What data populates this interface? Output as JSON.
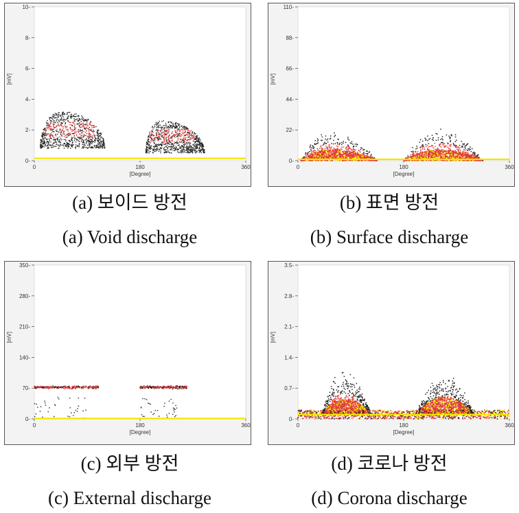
{
  "chart_data": [
    {
      "type": "scatter",
      "subtitle_ko": "(a) 보이드 방전",
      "subtitle_en": "(a) Void discharge",
      "xlabel": "[Degree]",
      "ylabel": "[mV]",
      "xlim": [
        0,
        360
      ],
      "ylim": [
        0,
        10
      ],
      "x_ticks": [
        0,
        180,
        360
      ],
      "y_ticks": [
        0,
        2,
        4,
        6,
        8,
        10
      ],
      "y_tick_labels": [
        "0",
        "2",
        "4",
        "6",
        "8",
        "10"
      ],
      "baseline": 0.15,
      "clusters": [
        {
          "x_start": 10,
          "x_end": 120,
          "x_peak": 45,
          "y_peak": 3.2,
          "y_min": 0.8,
          "core": 2.0
        },
        {
          "x_start": 190,
          "x_end": 290,
          "x_peak": 215,
          "y_peak": 2.6,
          "y_min": 0.5,
          "core": 1.6
        }
      ],
      "shape": "cloud",
      "colors": {
        "baseline": "#f2e600",
        "core": "#e03a3a",
        "outer": "#222222"
      }
    },
    {
      "type": "scatter",
      "subtitle_ko": "(b) 표면 방전",
      "subtitle_en": "(b) Surface discharge",
      "xlabel": "[Degree]",
      "ylabel": "[mV]",
      "xlim": [
        0,
        360
      ],
      "ylim": [
        0,
        110
      ],
      "x_ticks": [
        0,
        180,
        360
      ],
      "y_ticks": [
        0,
        22,
        44,
        66,
        88,
        110
      ],
      "y_tick_labels": [
        "0",
        "22",
        "44",
        "66",
        "88",
        "110"
      ],
      "baseline": 1,
      "clusters": [
        {
          "x_start": 5,
          "x_end": 135,
          "x_peak": 55,
          "y_peak": 22,
          "y_min": 0,
          "core": 8
        },
        {
          "x_start": 180,
          "x_end": 315,
          "x_peak": 240,
          "y_peak": 23,
          "y_min": 0,
          "core": 8
        }
      ],
      "shape": "dome",
      "colors": {
        "baseline": "#f2e600",
        "core": "#e03a3a",
        "outer": "#222222"
      }
    },
    {
      "type": "scatter",
      "subtitle_ko": "(c) 외부 방전",
      "subtitle_en": "(c) External discharge",
      "xlabel": "[Degree]",
      "ylabel": "[mV]",
      "xlim": [
        0,
        360
      ],
      "ylim": [
        0,
        350
      ],
      "x_ticks": [
        0,
        180,
        360
      ],
      "y_ticks": [
        0,
        70,
        140,
        210,
        280,
        350
      ],
      "y_tick_labels": [
        "0",
        "70",
        "140",
        "210",
        "280",
        "350"
      ],
      "baseline": 1,
      "clusters": [
        {
          "x_start": 0,
          "x_end": 110,
          "x_peak": 40,
          "y_peak": 75,
          "y_min": 65,
          "core": 72
        },
        {
          "x_start": 180,
          "x_end": 260,
          "x_peak": 220,
          "y_peak": 75,
          "y_min": 65,
          "core": 72
        }
      ],
      "shape": "band",
      "colors": {
        "baseline": "#f2e600",
        "core": "#e03a3a",
        "outer": "#222222"
      }
    },
    {
      "type": "scatter",
      "subtitle_ko": "(d) 코로나 방전",
      "subtitle_en": "(d) Corona discharge",
      "xlabel": "[Degree]",
      "ylabel": "[mV]",
      "xlim": [
        0,
        360
      ],
      "ylim": [
        0,
        3.5
      ],
      "x_ticks": [
        0,
        180,
        360
      ],
      "y_ticks": [
        0,
        0.7,
        1.4,
        2.1,
        2.8,
        3.5
      ],
      "y_tick_labels": [
        "0",
        "0.7",
        "1.4",
        "2.1",
        "2.8",
        "3.5"
      ],
      "baseline": 0.1,
      "base_band": [
        0.0,
        0.2
      ],
      "clusters": [
        {
          "x_start": 40,
          "x_end": 125,
          "x_peak": 78,
          "y_peak": 1.05,
          "y_min": 0.1,
          "core": 0.35
        },
        {
          "x_start": 200,
          "x_end": 300,
          "x_peak": 250,
          "y_peak": 0.95,
          "y_min": 0.1,
          "core": 0.4
        }
      ],
      "shape": "mountain",
      "colors": {
        "baseline": "#f2e600",
        "core": "#e03a3a",
        "outer": "#222222"
      }
    }
  ]
}
